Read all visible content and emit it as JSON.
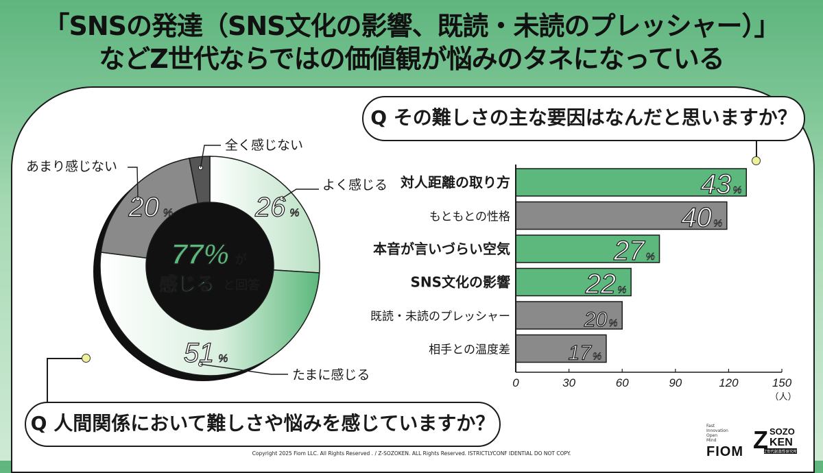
{
  "title": {
    "line1": "「SNSの発達（SNS文化の影響、既読・未読のプレッシャー）」",
    "line2": "などZ世代ならではの価値観が悩みのタネになっている"
  },
  "questions": {
    "q1": "Q その難しさの主な要因はなんだと思いますか？",
    "q2": "Q 人間関係において難しさや悩みを感じていますか？"
  },
  "donut_center": {
    "big": "77%",
    "ga": "が",
    "kanji": "感じる",
    "tail": "と回答"
  },
  "footer": {
    "copyright": "Copyright 2025 Fiom LLC. All Rights Reserved . / Z-SOZOKEN. ALL Rights Reserved. ISTRICTLYCONF IDENTIAL DO NOT COPY."
  },
  "logos": {
    "fiom_words": [
      "Fast",
      "Innovation",
      "Open",
      "Mind"
    ],
    "fiom": "FIOM",
    "sozo_z": "Z",
    "sozo_top": "SOZO",
    "sozo_bottom": "KEN",
    "sozo_sub": "Z世代創造性研究所"
  },
  "colors": {
    "green": "#5cb87c",
    "light_green": "#e6f3e8",
    "gray": "#8a8a8a",
    "dark_gray": "#555555"
  },
  "chart_data": [
    {
      "type": "pie",
      "variant": "donut",
      "unit": "%",
      "slices": [
        {
          "label": "よく感じる",
          "value": 26
        },
        {
          "label": "たまに感じる",
          "value": 51
        },
        {
          "label": "あまり感じない",
          "value": 20
        },
        {
          "label": "全く感じない",
          "value": 3
        }
      ]
    },
    {
      "type": "bar",
      "orientation": "horizontal",
      "categories": [
        "対人距離の取り方",
        "もともとの性格",
        "本音が言いづらい空気",
        "SNS文化の影響",
        "既読・未読のプレッシャー",
        "相手との温度差"
      ],
      "values": [
        130,
        119,
        81,
        65,
        60,
        51
      ],
      "value_labels": [
        "43%",
        "40%",
        "27%",
        "22%",
        "20%",
        "17%"
      ],
      "highlighted": [
        true,
        false,
        true,
        true,
        false,
        false
      ],
      "xlim": [
        0,
        150
      ],
      "xticks": [
        0,
        30,
        60,
        90,
        120,
        150
      ],
      "xunit": "（人）",
      "grid": false
    }
  ]
}
